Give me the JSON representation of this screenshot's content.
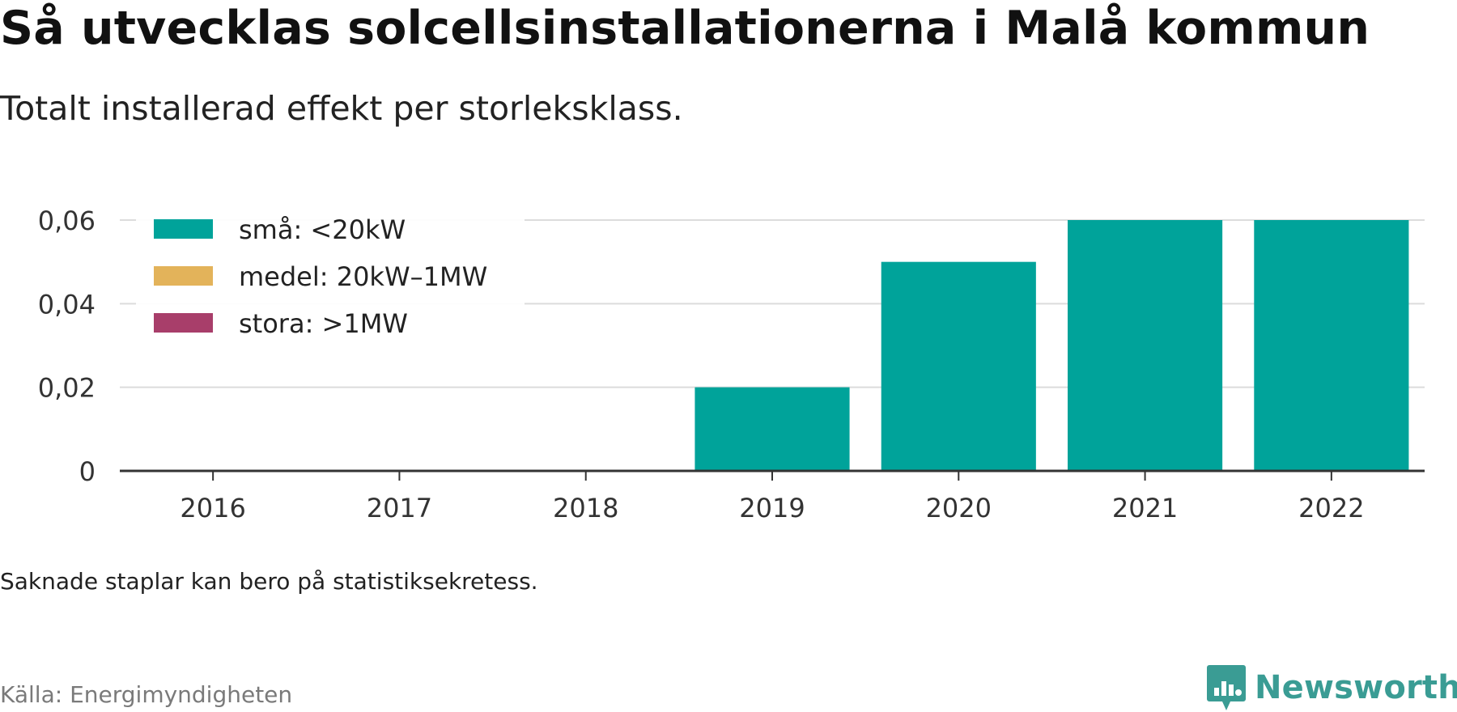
{
  "title": "Så utvecklas solcellsinstallationerna i Malå kommun",
  "subtitle": "Totalt installerad effekt per storleksklass.",
  "note": "Saknade staplar kan bero på statistiksekretess.",
  "source": "Källa: Energimyndigheten",
  "brand": {
    "name": "Newsworthy",
    "icon": "newsworthy-logo-icon",
    "color": "#3a9c94"
  },
  "chart_data": {
    "type": "bar",
    "stacked": true,
    "categories": [
      "2016",
      "2017",
      "2018",
      "2019",
      "2020",
      "2021",
      "2022"
    ],
    "series": [
      {
        "name": "små: <20kW",
        "color": "#00a39a",
        "values": [
          0,
          0,
          0,
          0.02,
          0.05,
          0.06,
          0.06
        ]
      },
      {
        "name": "medel: 20kW–1MW",
        "color": "#e3b35a",
        "values": [
          0,
          0,
          0,
          0,
          0,
          0,
          0
        ]
      },
      {
        "name": "stora: >1MW",
        "color": "#a83e6a",
        "values": [
          0,
          0,
          0,
          0,
          0,
          0,
          0
        ]
      }
    ],
    "ylim": [
      0,
      0.06
    ],
    "yticks": [
      {
        "value": 0,
        "label": "0"
      },
      {
        "value": 0.02,
        "label": "0,02"
      },
      {
        "value": 0.04,
        "label": "0,04"
      },
      {
        "value": 0.06,
        "label": "0,06"
      }
    ],
    "grid": true,
    "legend_position": "top-left",
    "xlabel": "",
    "ylabel": ""
  }
}
